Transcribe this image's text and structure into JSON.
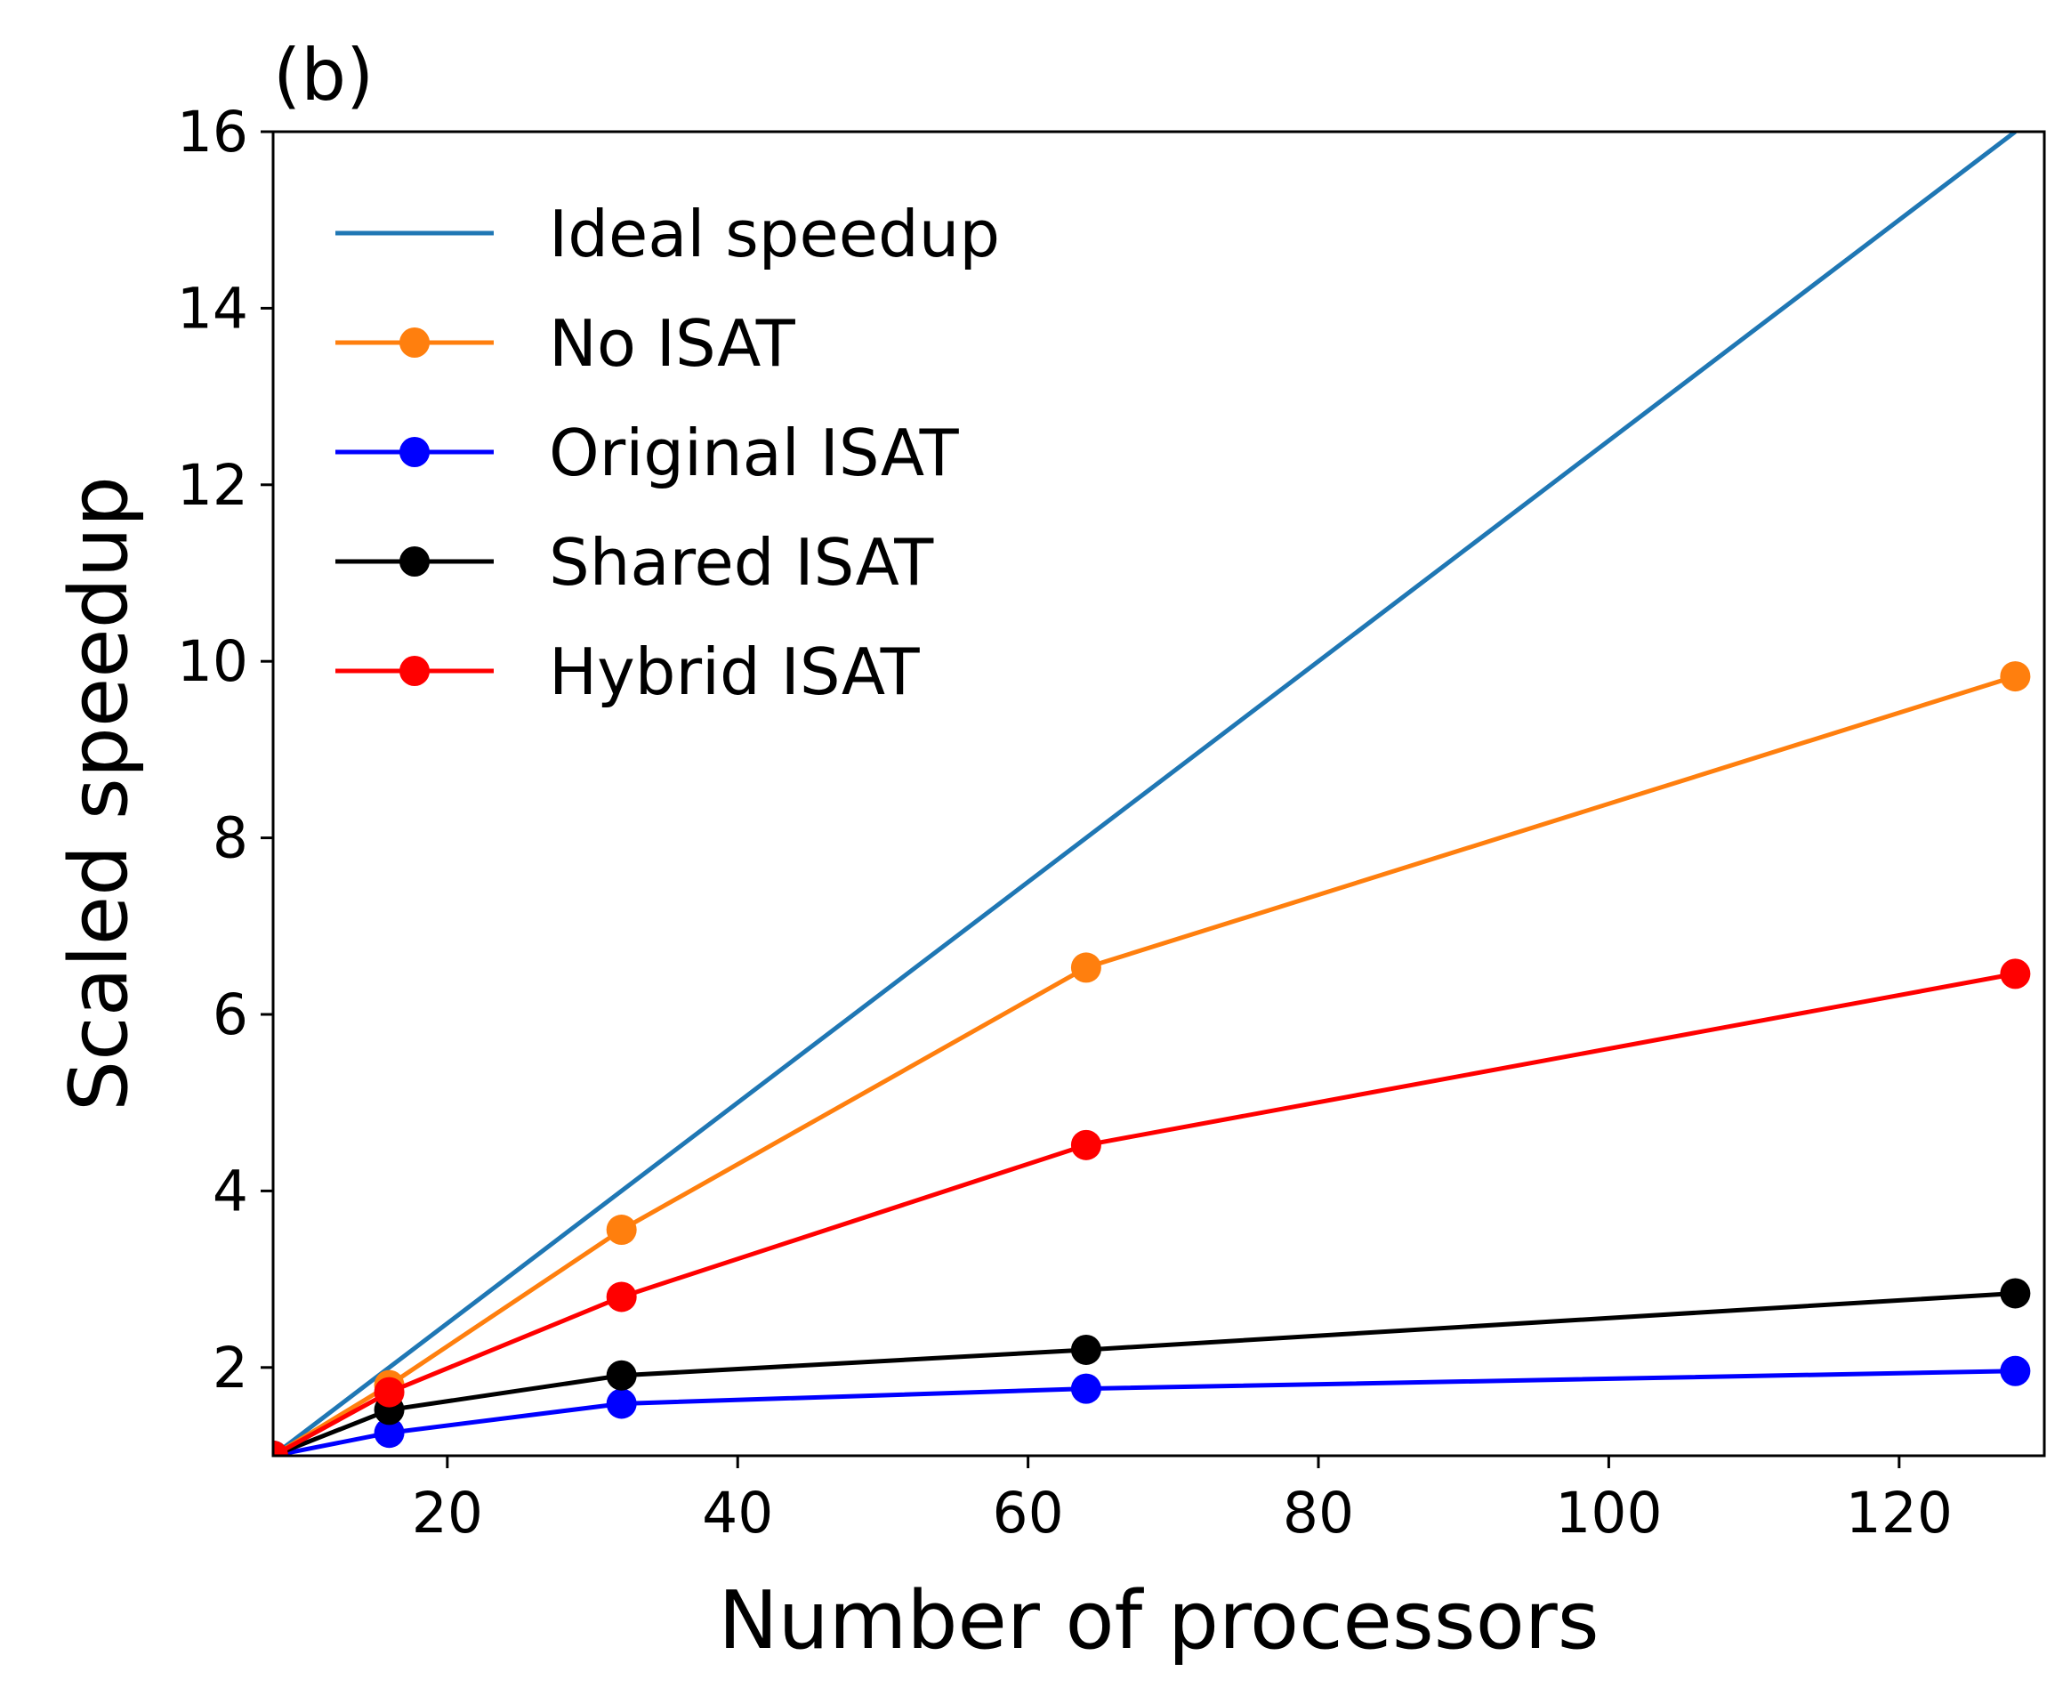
{
  "chart_data": {
    "type": "line",
    "panel_label": "(b)",
    "xlabel": "Number of processors",
    "ylabel": "Scaled speedup",
    "xlim": [
      8,
      130
    ],
    "ylim": [
      1,
      16
    ],
    "xticks": [
      20,
      40,
      60,
      80,
      100,
      120
    ],
    "yticks": [
      2,
      4,
      6,
      8,
      10,
      12,
      14,
      16
    ],
    "x": [
      8,
      16,
      32,
      64,
      128
    ],
    "grid": false,
    "legend_position": "top-left",
    "series": [
      {
        "name": "Ideal speedup",
        "color": "#1f77b4",
        "marker": "none",
        "values": [
          1,
          2,
          4,
          8,
          16
        ]
      },
      {
        "name": "No ISAT",
        "color": "#ff7f0e",
        "marker": "circle",
        "values": [
          1,
          1.8,
          3.56,
          6.53,
          9.83
        ]
      },
      {
        "name": "Original ISAT",
        "color": "#0000ff",
        "marker": "circle",
        "values": [
          1,
          1.26,
          1.59,
          1.76,
          1.96
        ]
      },
      {
        "name": "Shared ISAT",
        "color": "#000000",
        "marker": "circle",
        "values": [
          1,
          1.52,
          1.91,
          2.2,
          2.84
        ]
      },
      {
        "name": "Hybrid ISAT",
        "color": "#ff0000",
        "marker": "circle",
        "values": [
          1,
          1.72,
          2.8,
          4.52,
          6.46
        ]
      }
    ]
  }
}
